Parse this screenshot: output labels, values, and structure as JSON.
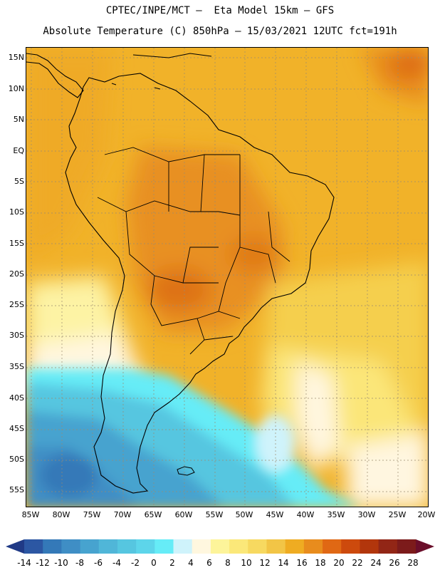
{
  "header": {
    "line1": "CPTEC/INPE/MCT —  Eta Model 15km — GFS",
    "line2": "Absolute Temperature (C) 850hPa — 15/03/2021 12UTC fct=191h"
  },
  "map": {
    "lat_labels": [
      "15N",
      "10N",
      "5N",
      "EQ",
      "5S",
      "10S",
      "15S",
      "20S",
      "25S",
      "30S",
      "35S",
      "40S",
      "45S",
      "50S",
      "55S"
    ],
    "lon_labels": [
      "85W",
      "80W",
      "75W",
      "70W",
      "65W",
      "60W",
      "55W",
      "50W",
      "45W",
      "40W",
      "35W",
      "30W",
      "25W",
      "20W"
    ]
  },
  "colorbar": {
    "labels": [
      "-14",
      "-12",
      "-10",
      "-8",
      "-6",
      "-4",
      "-2",
      "0",
      "2",
      "4",
      "6",
      "8",
      "10",
      "12",
      "14",
      "16",
      "18",
      "20",
      "22",
      "24",
      "26",
      "28"
    ],
    "colors": [
      "#203a86",
      "#2c57a3",
      "#3479b8",
      "#3f8ec5",
      "#47a3cf",
      "#50b6d8",
      "#56c6e0",
      "#5dd5ea",
      "#66ecf7",
      "#cff3fb",
      "#fff7df",
      "#fdf49a",
      "#fbe879",
      "#f7d960",
      "#f2c546",
      "#efac22",
      "#e88c1d",
      "#e06814",
      "#cd4a0d",
      "#b2360c",
      "#922616",
      "#7c1b1b",
      "#6a0e2a"
    ]
  }
}
